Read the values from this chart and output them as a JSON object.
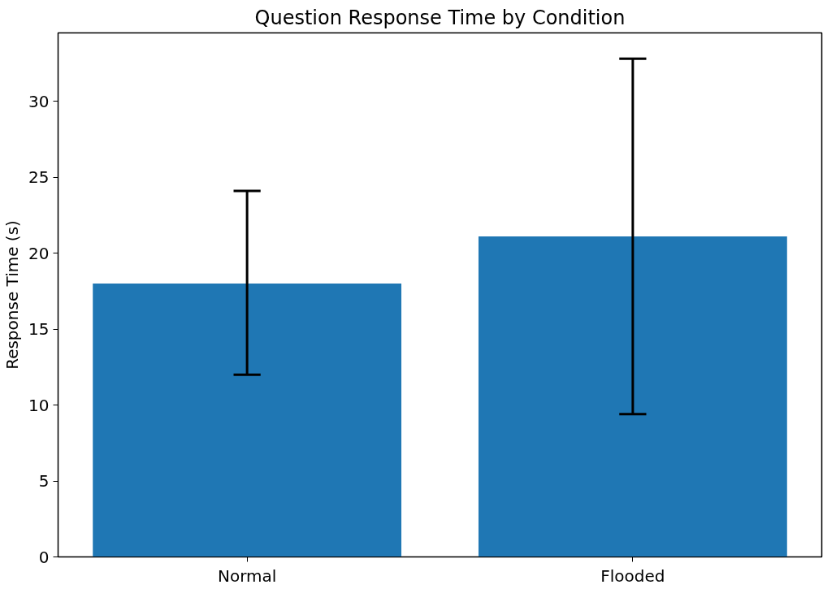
{
  "chart_data": {
    "type": "bar",
    "title": "Question Response Time by Condition",
    "ylabel": "Response Time (s)",
    "categories": [
      "Normal",
      "Flooded"
    ],
    "series": [
      {
        "color": "#1f77b4",
        "values": [
          18.0,
          21.1
        ],
        "errors": [
          [
            12.0,
            24.1
          ],
          [
            9.4,
            32.8
          ]
        ]
      }
    ],
    "ylim": [
      0,
      34.5
    ],
    "yticks": [
      0,
      5,
      10,
      15,
      20,
      25,
      30
    ],
    "grid": false
  }
}
